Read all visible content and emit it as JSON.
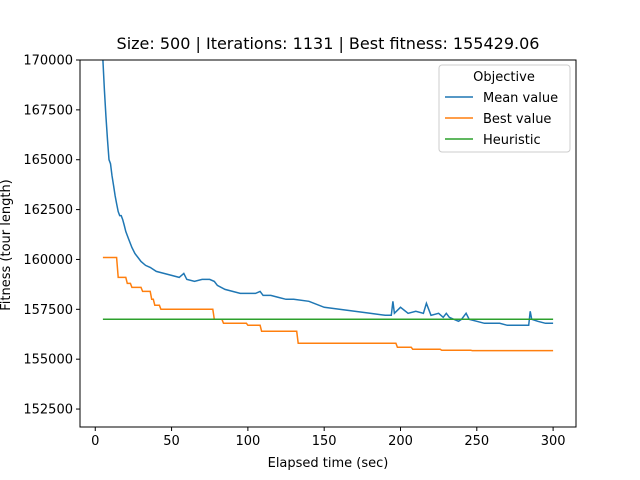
{
  "chart_data": {
    "type": "line",
    "title": "Size: 500 | Iterations: 1131 | Best fitness: 155429.06",
    "xlabel": "Elapsed time (sec)",
    "ylabel": "Fitness (tour length)",
    "xlim": [
      -10,
      315
    ],
    "ylim": [
      151600,
      170000
    ],
    "xticks": [
      0,
      50,
      100,
      150,
      200,
      250,
      300
    ],
    "yticks": [
      152500,
      155000,
      157500,
      160000,
      162500,
      165000,
      167500,
      170000
    ],
    "legend": {
      "title": "Objective",
      "position": "top-right"
    },
    "series": [
      {
        "name": "Mean value",
        "color": "#1f77b4",
        "x": [
          5,
          6,
          7,
          8,
          9,
          10,
          11,
          12,
          13,
          14,
          15,
          16,
          17,
          18,
          19,
          20,
          22,
          24,
          26,
          28,
          30,
          33,
          36,
          40,
          45,
          50,
          55,
          58,
          60,
          65,
          70,
          75,
          78,
          80,
          85,
          90,
          95,
          100,
          105,
          108,
          110,
          115,
          120,
          125,
          130,
          140,
          150,
          160,
          170,
          180,
          190,
          194,
          195,
          196,
          200,
          205,
          210,
          215,
          217,
          220,
          225,
          228,
          230,
          232,
          235,
          238,
          240,
          243,
          245,
          250,
          255,
          260,
          265,
          270,
          280,
          284,
          285,
          286,
          290,
          295,
          300
        ],
        "y": [
          170000,
          168500,
          167200,
          166000,
          165000,
          164800,
          164200,
          163700,
          163200,
          162800,
          162400,
          162200,
          162200,
          162000,
          161700,
          161400,
          161000,
          160600,
          160300,
          160100,
          159900,
          159700,
          159600,
          159400,
          159300,
          159200,
          159100,
          159300,
          159000,
          158900,
          159000,
          159000,
          158900,
          158700,
          158500,
          158400,
          158300,
          158300,
          158300,
          158400,
          158200,
          158200,
          158100,
          158000,
          158000,
          157900,
          157600,
          157500,
          157400,
          157300,
          157200,
          157200,
          157900,
          157300,
          157600,
          157300,
          157400,
          157300,
          157800,
          157200,
          157300,
          157100,
          157300,
          157100,
          157000,
          156900,
          157000,
          157300,
          157000,
          156900,
          156800,
          156800,
          156800,
          156700,
          156700,
          156700,
          157400,
          157000,
          156900,
          156800,
          156800
        ]
      },
      {
        "name": "Best value",
        "color": "#ff7f0e",
        "x": [
          5,
          14,
          15,
          20,
          21,
          23,
          24,
          30,
          31,
          36,
          37,
          38,
          39,
          42,
          43,
          77,
          78,
          83,
          84,
          99,
          100,
          108,
          109,
          132,
          133,
          197,
          198,
          207,
          208,
          226,
          227,
          246,
          247,
          300
        ],
        "y": [
          160100,
          160100,
          159100,
          159100,
          158800,
          158800,
          158600,
          158600,
          158400,
          158400,
          158000,
          158000,
          157700,
          157700,
          157500,
          157500,
          157000,
          157000,
          156800,
          156800,
          156700,
          156700,
          156400,
          156400,
          155800,
          155800,
          155600,
          155600,
          155500,
          155500,
          155450,
          155450,
          155429,
          155429
        ]
      },
      {
        "name": "Heuristic",
        "color": "#2ca02c",
        "x": [
          5,
          300
        ],
        "y": [
          157000,
          157000
        ]
      }
    ]
  }
}
